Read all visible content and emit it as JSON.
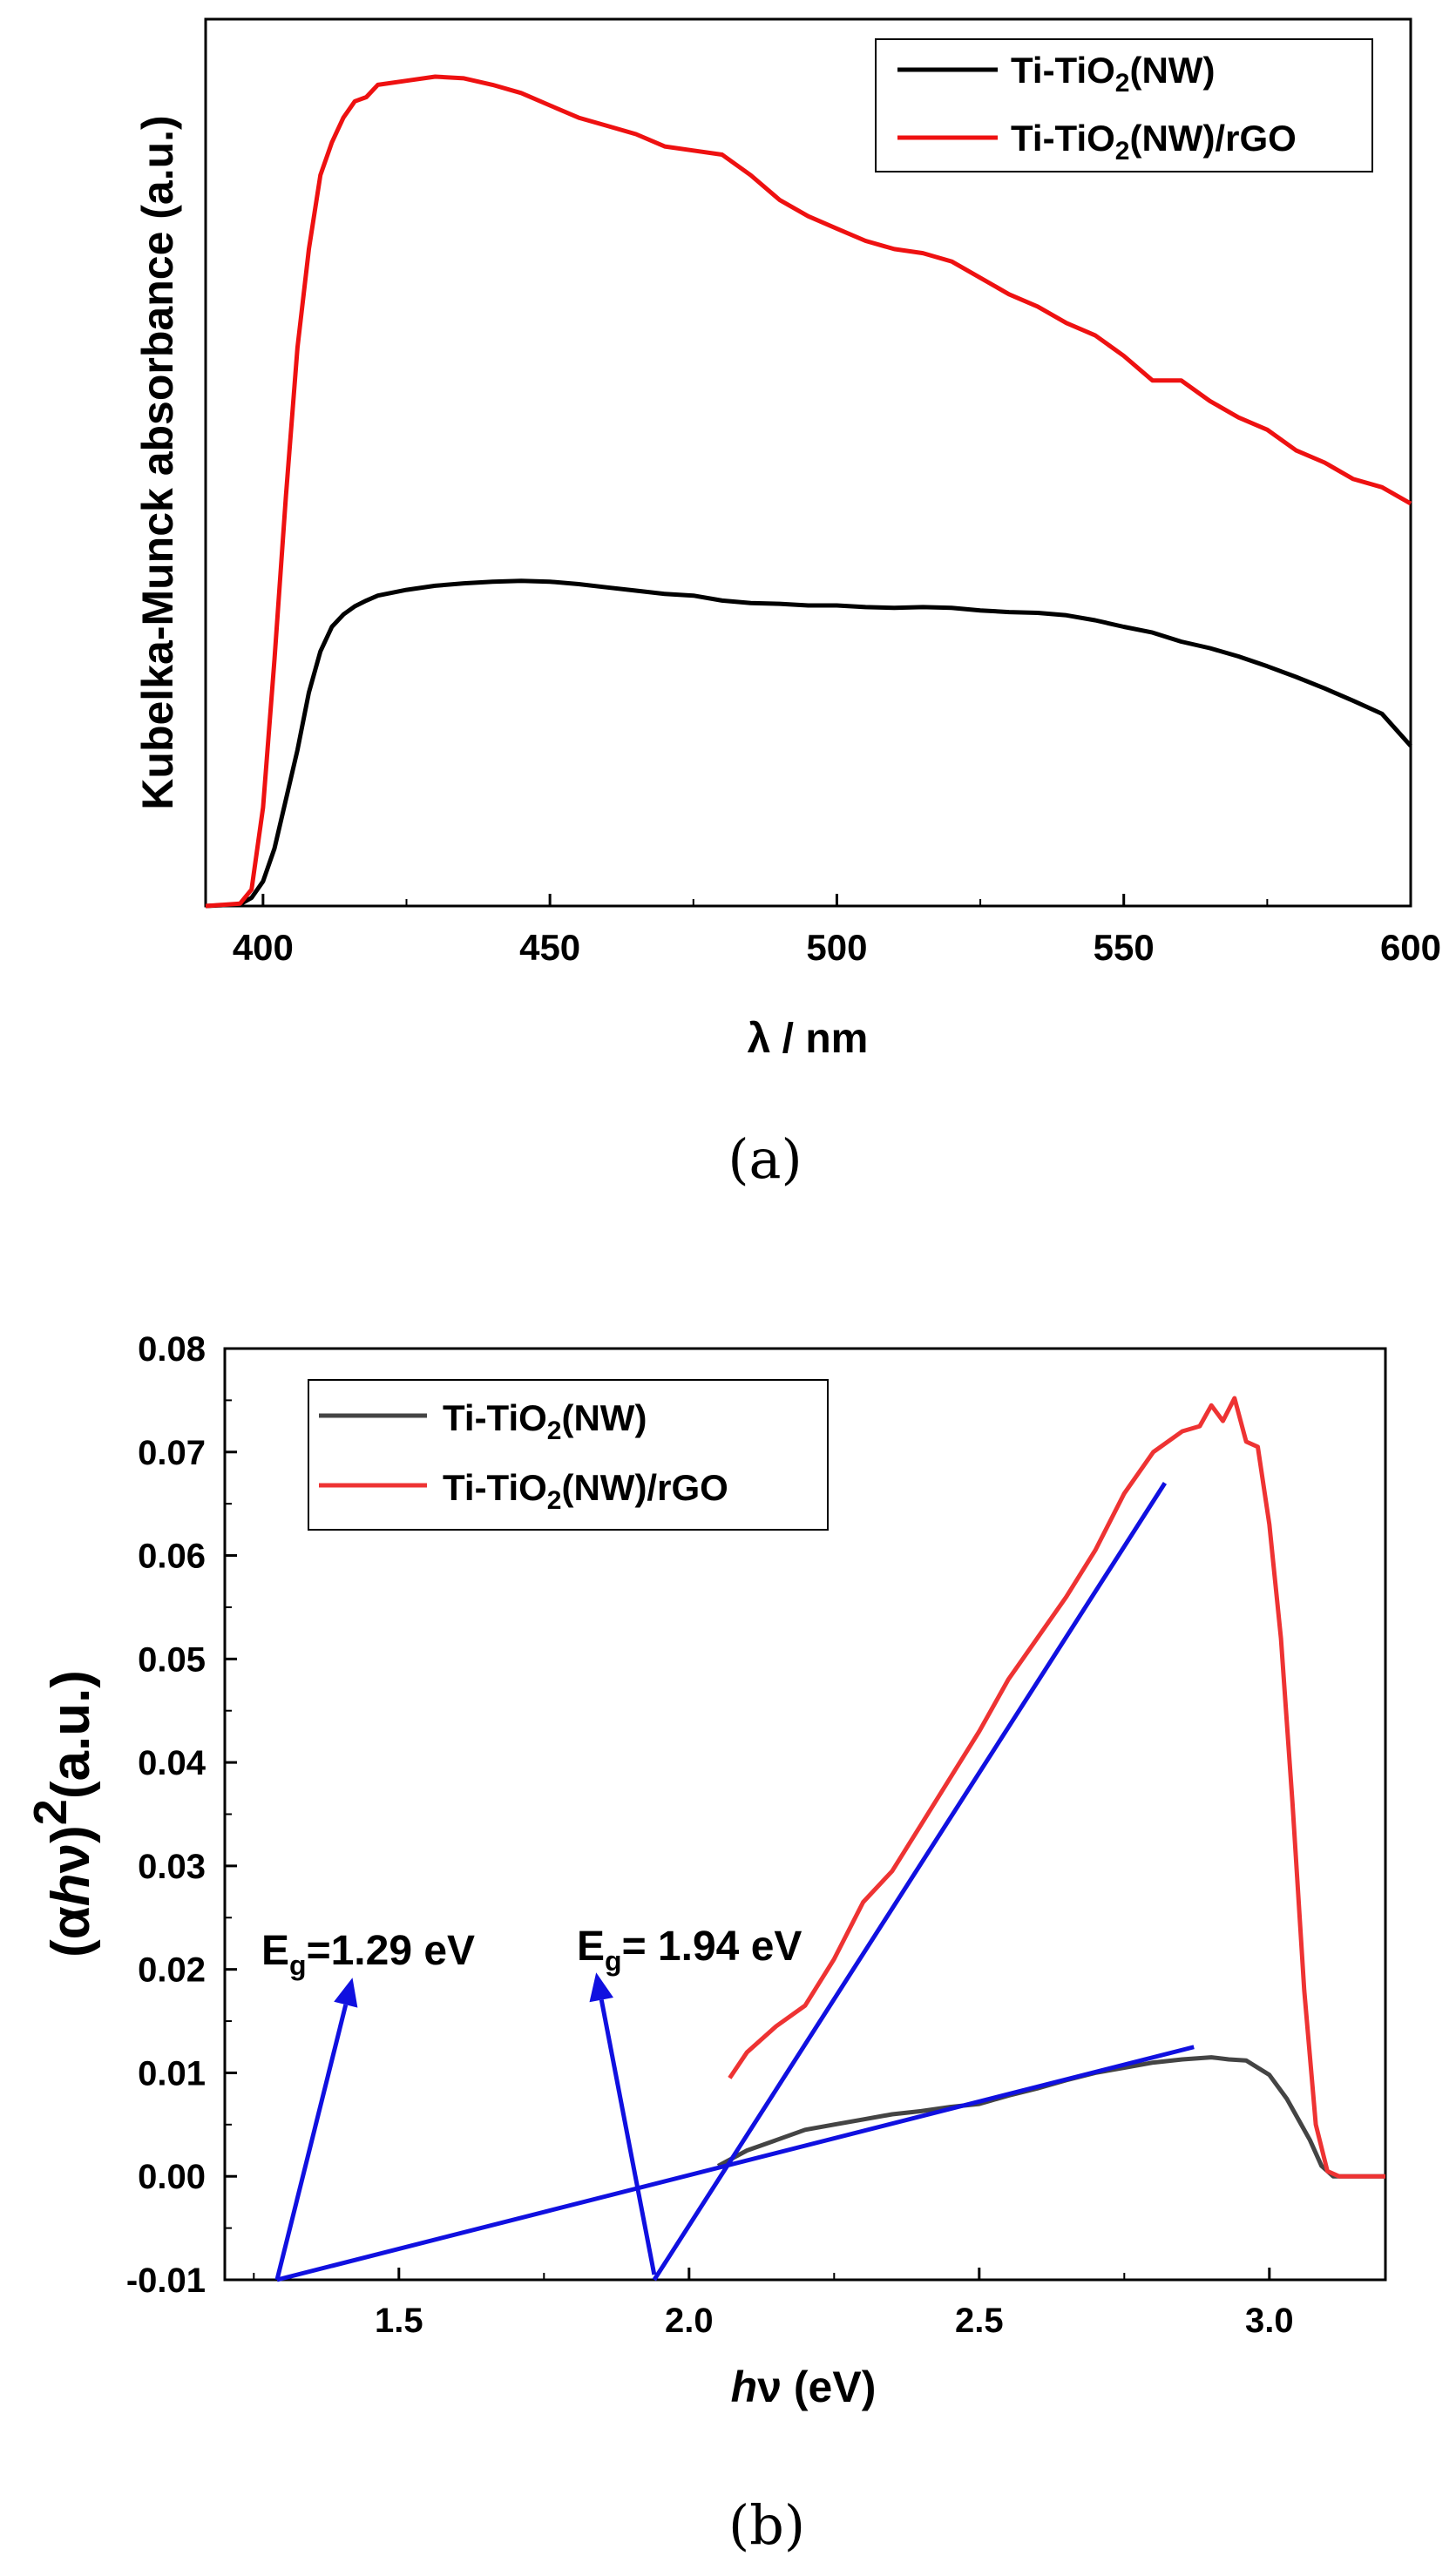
{
  "panels": {
    "a": {
      "label": "(a)"
    },
    "b": {
      "label": "(b)"
    }
  },
  "chart_data": [
    {
      "id": "a",
      "type": "line",
      "title": "",
      "xlabel": "λ / nm",
      "ylabel": "Kubelka-Munck absorbance (a.u.)",
      "xlim": [
        390,
        600
      ],
      "ylim": [
        0,
        1.08
      ],
      "xticks": [
        400,
        450,
        500,
        550,
        600
      ],
      "show_yticks": false,
      "legend_position": "top-right",
      "legend": [
        {
          "sub_before": "Ti-TiO",
          "sub": "2",
          "sub_after": "(NW)",
          "color": "#000000"
        },
        {
          "sub_before": "Ti-TiO",
          "sub": "2",
          "sub_after": "(NW)/rGO",
          "color": "#ee1111"
        }
      ],
      "series": [
        {
          "name": "Ti-TiO2(NW)",
          "color": "#000000",
          "x": [
            390,
            396,
            398,
            400,
            402,
            404,
            406,
            408,
            410,
            412,
            414,
            416,
            418,
            420,
            425,
            430,
            435,
            440,
            445,
            450,
            455,
            460,
            465,
            470,
            475,
            480,
            485,
            490,
            495,
            500,
            505,
            510,
            515,
            520,
            525,
            530,
            535,
            540,
            545,
            550,
            555,
            560,
            565,
            570,
            575,
            580,
            585,
            590,
            595,
            600
          ],
          "y": [
            0.0,
            0.002,
            0.01,
            0.03,
            0.07,
            0.13,
            0.19,
            0.26,
            0.31,
            0.34,
            0.355,
            0.365,
            0.372,
            0.378,
            0.385,
            0.39,
            0.393,
            0.395,
            0.396,
            0.395,
            0.392,
            0.388,
            0.384,
            0.38,
            0.378,
            0.372,
            0.369,
            0.368,
            0.366,
            0.366,
            0.364,
            0.363,
            0.364,
            0.363,
            0.36,
            0.358,
            0.357,
            0.354,
            0.348,
            0.34,
            0.333,
            0.322,
            0.314,
            0.304,
            0.292,
            0.279,
            0.265,
            0.25,
            0.234,
            0.195
          ]
        },
        {
          "name": "Ti-TiO2(NW)/rGO",
          "color": "#ee1111",
          "x": [
            390,
            396,
            398,
            400,
            402,
            404,
            406,
            408,
            410,
            412,
            414,
            416,
            418,
            420,
            425,
            430,
            435,
            440,
            445,
            450,
            455,
            460,
            465,
            470,
            475,
            480,
            485,
            490,
            495,
            500,
            505,
            510,
            515,
            520,
            525,
            530,
            535,
            540,
            545,
            550,
            555,
            560,
            565,
            570,
            575,
            580,
            585,
            590,
            595,
            600
          ],
          "y": [
            0.0,
            0.003,
            0.02,
            0.12,
            0.3,
            0.5,
            0.68,
            0.8,
            0.89,
            0.93,
            0.96,
            0.98,
            0.985,
            1.0,
            1.005,
            1.01,
            1.008,
            1.0,
            0.99,
            0.975,
            0.96,
            0.95,
            0.94,
            0.925,
            0.92,
            0.915,
            0.89,
            0.86,
            0.84,
            0.825,
            0.81,
            0.8,
            0.795,
            0.785,
            0.765,
            0.745,
            0.73,
            0.71,
            0.695,
            0.67,
            0.64,
            0.64,
            0.615,
            0.595,
            0.58,
            0.555,
            0.54,
            0.52,
            0.51,
            0.49
          ]
        }
      ]
    },
    {
      "id": "b",
      "type": "line",
      "title": "",
      "xlabel_italic": "h",
      "xlabel_rest": "ν (eV)",
      "ylabel_prefix": "(α",
      "ylabel_italic": "h",
      "ylabel_mid": "ν)",
      "ylabel_sup": "2",
      "ylabel_suffix": "(a.u.)",
      "xlim": [
        1.2,
        3.2
      ],
      "ylim": [
        -0.01,
        0.08
      ],
      "xticks": [
        1.5,
        2.0,
        2.5,
        3.0
      ],
      "xtick_labels": [
        "1.5",
        "2.0",
        "2.5",
        "3.0"
      ],
      "yticks": [
        -0.01,
        0.0,
        0.01,
        0.02,
        0.03,
        0.04,
        0.05,
        0.06,
        0.07,
        0.08
      ],
      "ytick_labels": [
        "-0.01",
        "0.00",
        "0.01",
        "0.02",
        "0.03",
        "0.04",
        "0.05",
        "0.06",
        "0.07",
        "0.08"
      ],
      "legend_position": "top-left",
      "legend": [
        {
          "sub_before": "Ti-TiO",
          "sub": "2",
          "sub_after": "(NW)",
          "color": "#444444"
        },
        {
          "sub_before": "Ti-TiO",
          "sub": "2",
          "sub_after": "(NW)/rGO",
          "color": "#ee3333"
        }
      ],
      "series": [
        {
          "name": "Ti-TiO2(NW)",
          "color": "#444444",
          "x": [
            2.05,
            2.1,
            2.15,
            2.2,
            2.25,
            2.3,
            2.35,
            2.4,
            2.45,
            2.5,
            2.55,
            2.6,
            2.65,
            2.7,
            2.75,
            2.8,
            2.85,
            2.9,
            2.93,
            2.96,
            3.0,
            3.03,
            3.05,
            3.07,
            3.09,
            3.11,
            3.15,
            3.2
          ],
          "y": [
            0.001,
            0.0025,
            0.0035,
            0.0045,
            0.005,
            0.0055,
            0.006,
            0.0063,
            0.0067,
            0.007,
            0.0078,
            0.0085,
            0.0093,
            0.01,
            0.0105,
            0.011,
            0.0113,
            0.0115,
            0.0113,
            0.0112,
            0.0098,
            0.0075,
            0.0055,
            0.0035,
            0.001,
            0.0,
            0.0,
            0.0
          ]
        },
        {
          "name": "Ti-TiO2(NW)/rGO",
          "color": "#ee3333",
          "x": [
            2.07,
            2.1,
            2.15,
            2.2,
            2.25,
            2.3,
            2.35,
            2.4,
            2.45,
            2.5,
            2.55,
            2.6,
            2.65,
            2.7,
            2.75,
            2.8,
            2.85,
            2.88,
            2.9,
            2.92,
            2.94,
            2.96,
            2.98,
            3.0,
            3.02,
            3.04,
            3.06,
            3.08,
            3.1,
            3.12,
            3.15,
            3.2
          ],
          "y": [
            0.0095,
            0.012,
            0.0145,
            0.0165,
            0.021,
            0.0265,
            0.0295,
            0.034,
            0.0385,
            0.043,
            0.048,
            0.052,
            0.056,
            0.0605,
            0.066,
            0.07,
            0.072,
            0.0725,
            0.0745,
            0.073,
            0.0752,
            0.071,
            0.0705,
            0.063,
            0.052,
            0.036,
            0.018,
            0.005,
            0.0005,
            0.0,
            0.0,
            0.0
          ]
        }
      ],
      "fit_lines": [
        {
          "color": "#1010e0",
          "x": [
            1.29,
            2.87
          ],
          "y": [
            -0.01,
            0.0125
          ]
        },
        {
          "color": "#1010e0",
          "x": [
            1.94,
            2.82
          ],
          "y": [
            -0.01,
            0.067
          ]
        }
      ],
      "arrows": [
        {
          "color": "#1010e0",
          "from": [
            1.29,
            -0.01
          ],
          "to": [
            1.42,
            0.0192
          ]
        },
        {
          "color": "#1010e0",
          "from": [
            1.94,
            -0.0095
          ],
          "to": [
            1.84,
            0.0197
          ]
        }
      ],
      "annotations": [
        {
          "main": "E",
          "sub": "g",
          "rest": "=1.29 eV"
        },
        {
          "main": "E",
          "sub": "g",
          "rest": "= 1.94 eV"
        }
      ]
    }
  ]
}
